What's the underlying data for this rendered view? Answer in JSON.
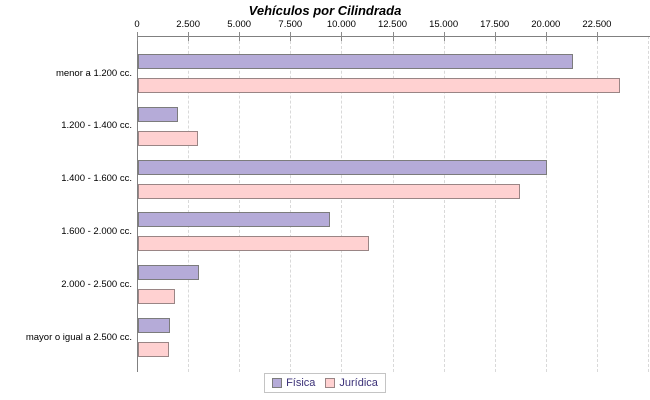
{
  "chart_data": {
    "type": "bar",
    "orientation": "horizontal",
    "title": "Vehículos por Cilindrada",
    "categories": [
      "menor a 1.200 cc.",
      "1.200 - 1.400 cc.",
      "1.400 - 1.600 cc.",
      "1.600 - 2.000 cc.",
      "2.000 - 2.500 cc.",
      "mayor o igual a 2.500 cc."
    ],
    "series": [
      {
        "name": "Física",
        "fill_color": "#b5abd8",
        "border_color": "#7c7c7c",
        "values": [
          21300,
          1950,
          20000,
          9400,
          3000,
          1550
        ]
      },
      {
        "name": "Jurídica",
        "fill_color": "#ffd1d1",
        "border_color": "#9a8585",
        "values": [
          23600,
          2950,
          18700,
          11300,
          1800,
          1500
        ]
      }
    ],
    "x_axis": {
      "tick_labels": [
        "0",
        "2.500",
        "5.000",
        "7.500",
        "10.000",
        "12.500",
        "15.000",
        "17.500",
        "20.000",
        "22.500"
      ],
      "tick_values": [
        0,
        2500,
        5000,
        7500,
        10000,
        12500,
        15000,
        17500,
        20000,
        22500
      ],
      "tick_step": 2500,
      "min": 0,
      "max": 25000,
      "grid": "dashed-vertical"
    },
    "legend": {
      "position": "bottom-center",
      "entries": [
        "Física",
        "Jurídica"
      ],
      "text_color": "#3b3178"
    },
    "colors": {
      "axis": "#808080",
      "gridline": "#d9d9d9",
      "background": "#ffffff",
      "title": "#000000"
    }
  }
}
